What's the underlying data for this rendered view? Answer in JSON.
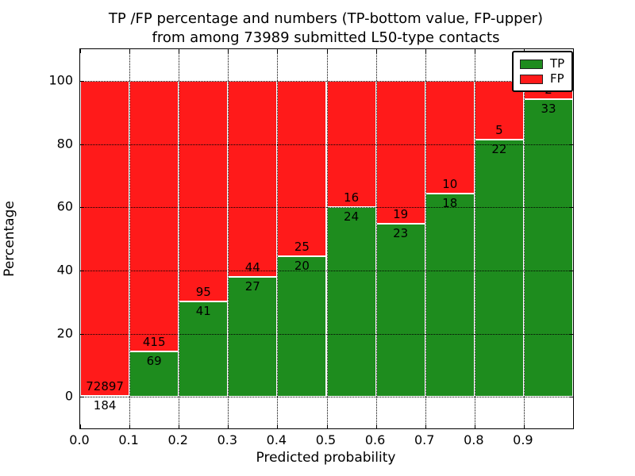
{
  "title": {
    "line1": "TP /FP percentage and numbers (TP-bottom value, FP-upper)",
    "line2": "from among 73989 submitted L50-type contacts"
  },
  "axes": {
    "ylabel": "Percentage",
    "xlabel": "Predicted probability",
    "ytick_labels": [
      "0",
      "20",
      "40",
      "60",
      "80",
      "100"
    ],
    "ytick_values": [
      0,
      20,
      40,
      60,
      80,
      100
    ],
    "xtick_labels": [
      "0.0",
      "0.1",
      "0.2",
      "0.3",
      "0.4",
      "0.5",
      "0.6",
      "0.7",
      "0.8",
      "0.9"
    ],
    "xtick_values": [
      0.0,
      0.1,
      0.2,
      0.3,
      0.4,
      0.5,
      0.6,
      0.7,
      0.8,
      0.9
    ],
    "ylim": [
      -10,
      110
    ],
    "xlim": [
      0,
      1
    ],
    "grid": "dotted black"
  },
  "legend": {
    "position": "upper right",
    "entries": [
      {
        "label": "TP",
        "color": "#1e8c1e"
      },
      {
        "label": "FP",
        "color": "#ff1a1a"
      }
    ]
  },
  "colors": {
    "tp": "#1e8c1e",
    "fp": "#ff1a1a",
    "bar_edge": "#ffffff",
    "text": "#000000"
  },
  "chart_data": {
    "type": "bar",
    "stacked": true,
    "normalized": "each bar scaled to 100%",
    "title": "TP /FP percentage and numbers (TP-bottom value, FP-upper) from among 73989 submitted L50-type contacts",
    "xlabel": "Predicted probability",
    "ylabel": "Percentage",
    "total_contacts": 73989,
    "categories": [
      "0.0-0.1",
      "0.1-0.2",
      "0.2-0.3",
      "0.3-0.4",
      "0.4-0.5",
      "0.5-0.6",
      "0.6-0.7",
      "0.7-0.8",
      "0.8-0.9",
      "0.9-1.0"
    ],
    "series": [
      {
        "name": "TP",
        "counts": [
          184,
          69,
          41,
          27,
          20,
          24,
          23,
          18,
          22,
          33
        ]
      },
      {
        "name": "FP",
        "counts": [
          72897,
          415,
          95,
          44,
          25,
          16,
          19,
          10,
          5,
          2
        ]
      }
    ],
    "tp_percent_approx": [
      0.3,
      14.3,
      30.1,
      38.0,
      44.4,
      60.0,
      54.8,
      64.3,
      81.5,
      94.3
    ],
    "ylim": [
      -10,
      110
    ],
    "legend_position": "upper right",
    "grid": true
  }
}
